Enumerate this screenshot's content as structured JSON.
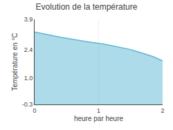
{
  "chart_data": {
    "type": "area",
    "title": "Evolution de la température",
    "x_label": "heure par heure",
    "y_label": "Température en °C",
    "x": [
      0.0,
      0.083,
      0.167,
      0.25,
      0.333,
      0.417,
      0.5,
      0.583,
      0.667,
      0.75,
      0.833,
      0.917,
      1.0,
      1.083,
      1.167,
      1.25,
      1.333,
      1.417,
      1.5,
      1.583,
      1.667,
      1.75,
      1.833,
      1.917,
      2.0
    ],
    "values": [
      3.28,
      3.22,
      3.16,
      3.11,
      3.06,
      3.01,
      2.96,
      2.91,
      2.87,
      2.83,
      2.79,
      2.76,
      2.73,
      2.68,
      2.63,
      2.58,
      2.53,
      2.47,
      2.41,
      2.33,
      2.25,
      2.17,
      2.08,
      1.97,
      1.85
    ],
    "color": "#5bb8d4",
    "xlim": [
      0,
      2
    ],
    "xticks": [
      0,
      1,
      2
    ],
    "ylim": [
      -0.3,
      3.9
    ],
    "yticks": [
      -0.3,
      {
        "value": 1.0,
        "label": "1.0"
      },
      2.4,
      3.9
    ],
    "grid": "x"
  }
}
